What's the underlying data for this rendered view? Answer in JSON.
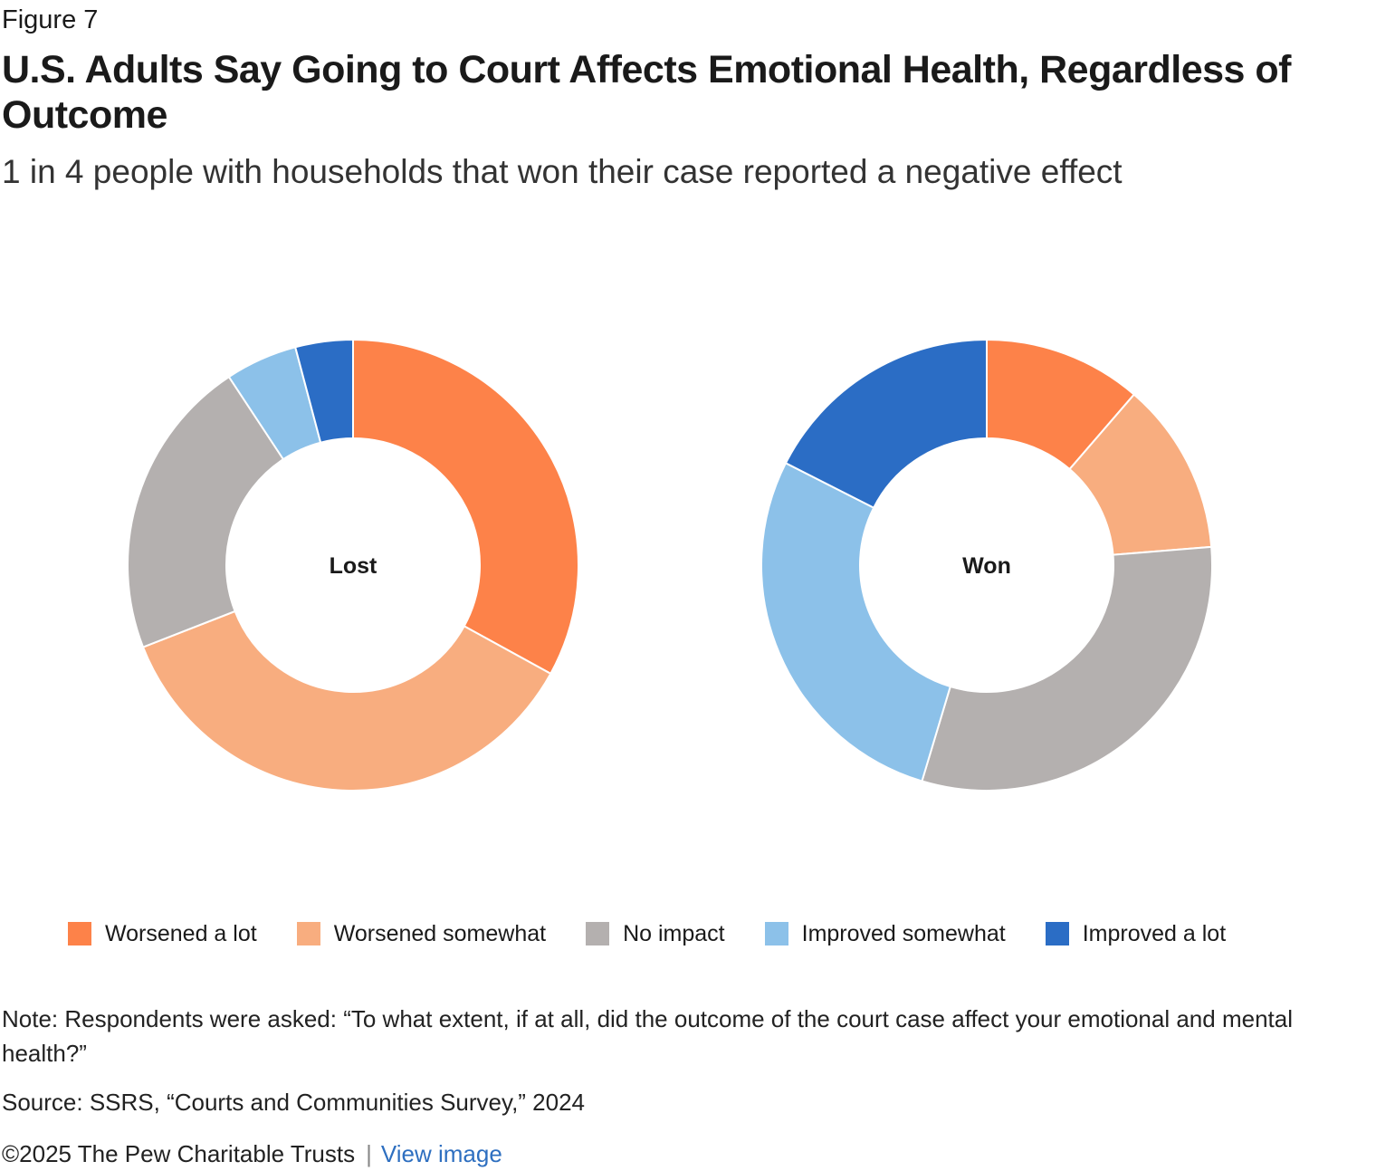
{
  "figure_label": "Figure 7",
  "title": "U.S. Adults Say Going to Court Affects Emotional Health, Regardless of Outcome",
  "subtitle": "1 in 4 people with households that won their case reported a negative effect",
  "colors": {
    "Worsened a lot": "#fd8249",
    "Worsened somewhat": "#f8ad7f",
    "No impact": "#b4b0af",
    "Improved somewhat": "#8cc1e9",
    "Improved a lot": "#2b6dc5"
  },
  "chart_data": [
    {
      "type": "pie",
      "center_label": "Lost",
      "categories": [
        "Worsened a lot",
        "Worsened somewhat",
        "No impact",
        "Improved somewhat",
        "Improved a lot"
      ],
      "values": [
        32,
        35,
        21,
        5,
        4
      ]
    },
    {
      "type": "pie",
      "center_label": "Won",
      "categories": [
        "Worsened a lot",
        "Worsened somewhat",
        "No impact",
        "Improved somewhat",
        "Improved a lot"
      ],
      "values": [
        11,
        12,
        30,
        27,
        17
      ]
    }
  ],
  "legend": [
    "Worsened a lot",
    "Worsened somewhat",
    "No impact",
    "Improved somewhat",
    "Improved a lot"
  ],
  "note": "Note: Respondents were asked: “To what extent, if at all, did the outcome of the court case affect your emotional and mental health?”",
  "source": "Source: SSRS, “Courts and Communities Survey,” 2024",
  "footer": {
    "copyright": "©2025 The Pew Charitable Trusts",
    "separator": "|",
    "link_label": "View image"
  }
}
